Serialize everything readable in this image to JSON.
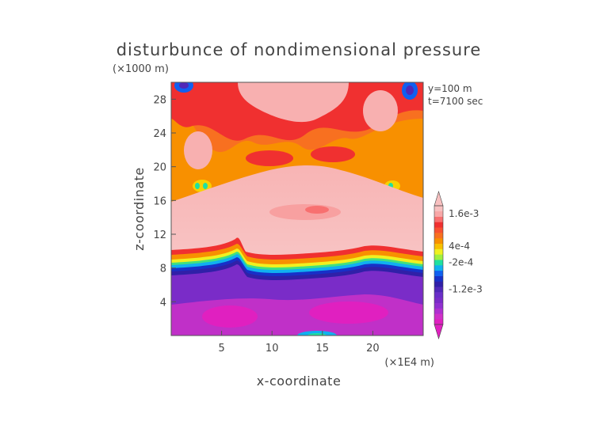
{
  "chart_data": {
    "type": "heatmap",
    "title": "disturbunce of nondimensional pressure",
    "units_note": "(×1000 m)",
    "info": [
      "y=100 m",
      "t=7100 sec"
    ],
    "xlabel": "x-coordinate",
    "ylabel": "z-coordinate",
    "x_unit": "(×1E4 m)",
    "xlim": [
      0,
      25
    ],
    "ylim": [
      0,
      30
    ],
    "xticks": [
      5,
      10,
      15,
      20
    ],
    "yticks": [
      4,
      8,
      12,
      16,
      20,
      24,
      28
    ],
    "colorbar": {
      "labels": [
        {
          "text": "1.6e-3",
          "value": 0.0016
        },
        {
          "text": "4e-4",
          "value": 0.0004
        },
        {
          "text": "-2e-4",
          "value": -0.0002
        },
        {
          "text": "-1.2e-3",
          "value": -0.0012
        }
      ],
      "levels": [
        -0.0024,
        -0.0022,
        -0.002,
        -0.0018,
        -0.0016,
        -0.0014,
        -0.0012,
        -0.001,
        -0.0008,
        -0.0006,
        -0.0004,
        -0.0002,
        0,
        0.0002,
        0.0004,
        0.0006,
        0.0008,
        0.001,
        0.0012,
        0.0014,
        0.0016,
        0.0018
      ],
      "colors": [
        "#e020c0",
        "#d030c8",
        "#b030d0",
        "#9030d0",
        "#7a2cc8",
        "#6a2ec8",
        "#5028b8",
        "#3020a8",
        "#1830c8",
        "#1060f0",
        "#10b0f0",
        "#20e0a0",
        "#a0f040",
        "#f0f020",
        "#f8c000",
        "#f89000",
        "#f87020",
        "#f85030",
        "#f03030",
        "#f87070",
        "#f8a8a8",
        "#f8c0c0"
      ]
    },
    "regions": {
      "lower_layer_value": -0.0015,
      "transition_height_approx": 8,
      "middle_layer_value": 0.0017,
      "upper_layer_values": [
        0.0004,
        0.001,
        0.0014
      ]
    }
  }
}
